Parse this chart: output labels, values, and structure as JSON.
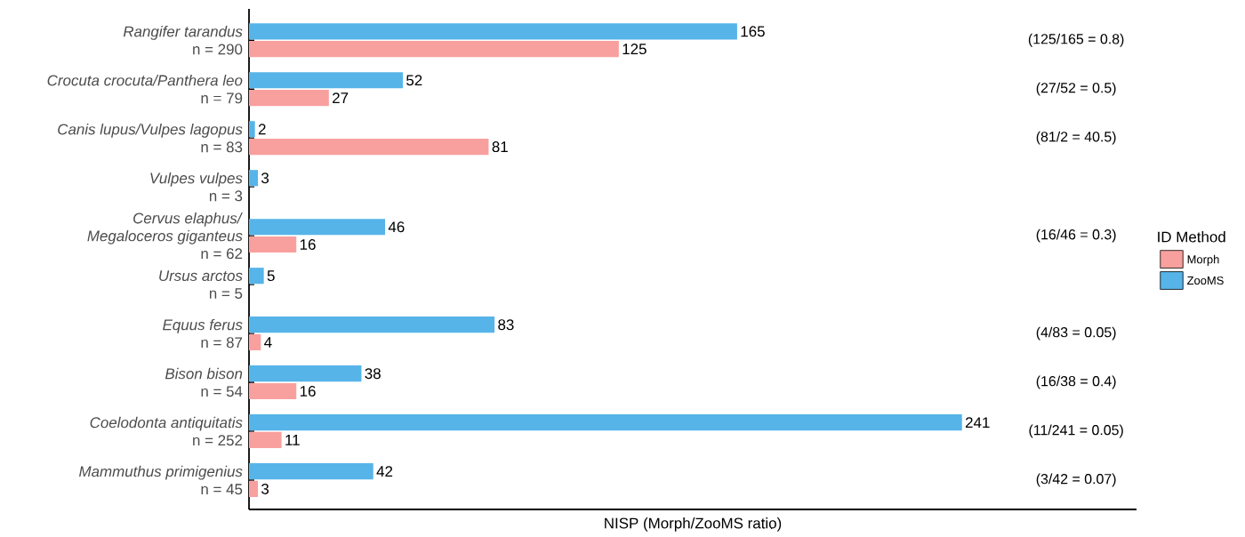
{
  "chart_data": {
    "type": "bar",
    "orientation": "horizontal",
    "categories": [
      "*Rangifer tarandus*\nn = 290",
      "*Crocuta crocuta/Panthera leo*\nn = 79",
      "*Canis lupus/Vulpes lagopus*\nn = 83",
      "*Vulpes vulpes*\nn = 3",
      "*Cervus elaphus/*\n*Megaloceros giganteus*\nn = 62",
      "*Ursus arctos*\nn = 5",
      "*Equus ferus*\nn = 87",
      "*Bison bison*\nn = 54",
      "*Coelodonta antiquitatis*\nn = 252",
      "*Mammuthus primigenius*\nn = 45"
    ],
    "series": [
      {
        "name": "Morph",
        "color": "#f8a09e",
        "values": [
          125,
          27,
          81,
          0,
          16,
          0,
          4,
          16,
          11,
          3
        ],
        "value_labels": [
          "125",
          "27",
          "81",
          null,
          "16",
          null,
          "4",
          "16",
          "11",
          "3"
        ]
      },
      {
        "name": "ZooMS",
        "color": "#56b4e9",
        "values": [
          165,
          52,
          2,
          3,
          46,
          5,
          83,
          38,
          241,
          42
        ],
        "value_labels": [
          "165",
          "52",
          "2",
          "3",
          "46",
          "5",
          "83",
          "38",
          "241",
          "42"
        ]
      }
    ],
    "xlim": [
      0,
      300
    ],
    "xlabel": "NISP (Morph/ZooMS ratio)",
    "legend_title": "ID Method",
    "legend": "right",
    "grid": false,
    "annotations": [
      "(125/165 = 0.8)",
      "(27/52 = 0.5)",
      "(81/2 = 40.5)",
      "(16/46 = 0.3)",
      "(4/83 = 0.05)",
      "(16/38 = 0.4)",
      "(11/241 = 0.05)",
      "(3/42 = 0.07)"
    ]
  }
}
